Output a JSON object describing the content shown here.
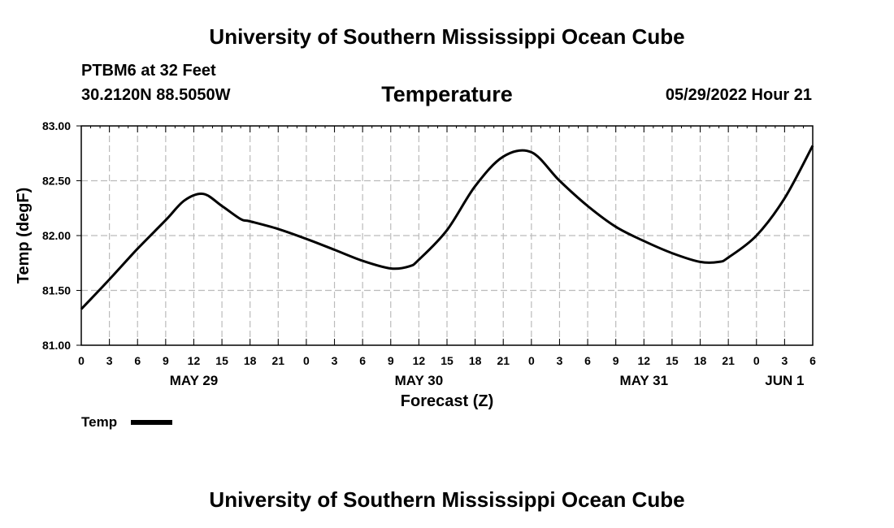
{
  "header": {
    "title": "University of Southern Mississippi Ocean Cube",
    "station": "PTBM6 at 32 Feet",
    "coords": "30.2120N  88.5050W",
    "timestamp": "05/29/2022 Hour 21"
  },
  "footer": {
    "title": "University of Southern Mississippi Ocean Cube"
  },
  "colors": {
    "line": "#000000",
    "grid": "#bbbbbb"
  },
  "chart_data": {
    "type": "line",
    "title": "Temperature",
    "xlabel": "Forecast (Z)",
    "ylabel": "Temp (degF)",
    "ylim": [
      81.0,
      83.0
    ],
    "xlim": [
      0,
      78
    ],
    "yticks": [
      81.0,
      81.5,
      82.0,
      82.5,
      83.0
    ],
    "ytick_labels": [
      "81.00",
      "81.50",
      "82.00",
      "82.50",
      "83.00"
    ],
    "xtick_labels": [
      "0",
      "3",
      "6",
      "9",
      "12",
      "15",
      "18",
      "21",
      "0",
      "3",
      "6",
      "9",
      "12",
      "15",
      "18",
      "21",
      "0",
      "3",
      "6",
      "9",
      "12",
      "15",
      "18",
      "21",
      "0",
      "3",
      "6"
    ],
    "date_labels": [
      {
        "label": "MAY 29",
        "x": 12
      },
      {
        "label": "MAY 30",
        "x": 36
      },
      {
        "label": "MAY 31",
        "x": 60
      },
      {
        "label": "JUN 1",
        "x": 75
      }
    ],
    "grid": true,
    "legend": {
      "position": "bottom-left",
      "entries": [
        "Temp"
      ]
    },
    "series": [
      {
        "name": "Temp",
        "x": [
          0,
          3,
          6,
          9,
          11,
          13,
          15,
          17,
          18,
          21,
          24,
          27,
          30,
          33,
          35,
          36,
          39,
          42,
          45,
          48,
          51,
          54,
          57,
          60,
          63,
          66,
          68,
          69,
          72,
          75,
          78
        ],
        "values": [
          81.33,
          81.6,
          81.88,
          82.14,
          82.32,
          82.38,
          82.27,
          82.15,
          82.13,
          82.06,
          81.97,
          81.87,
          81.77,
          81.7,
          81.72,
          81.78,
          82.05,
          82.45,
          82.72,
          82.76,
          82.5,
          82.27,
          82.08,
          81.95,
          81.84,
          81.76,
          81.76,
          81.8,
          82.0,
          82.34,
          82.82
        ]
      }
    ]
  }
}
